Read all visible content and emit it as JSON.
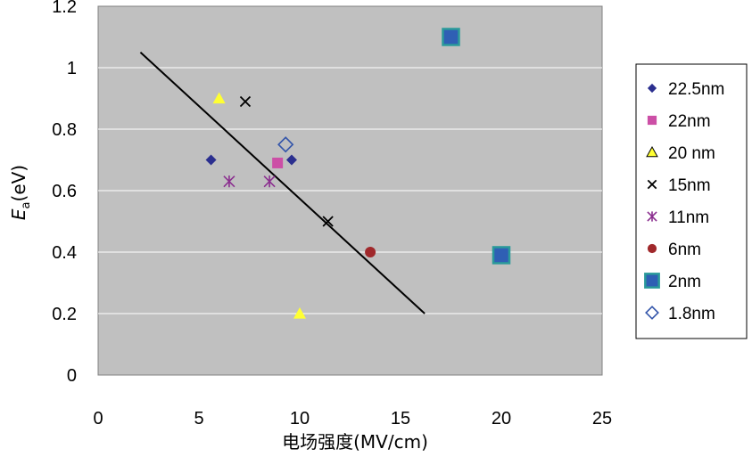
{
  "chart_data": {
    "type": "scatter",
    "xlabel": "电场强度(MV/cm)",
    "ylabel_main": "E",
    "ylabel_sub": "a",
    "ylabel_unit": "(eV)",
    "xlim": [
      0,
      25
    ],
    "ylim": [
      0,
      1.2
    ],
    "x_ticks": [
      "0",
      "5",
      "10",
      "15",
      "20",
      "25"
    ],
    "y_ticks": [
      "0",
      "0.2",
      "0.4",
      "0.6",
      "0.8",
      "1",
      "1.2"
    ],
    "grid": "horizontal",
    "legend_position": "right",
    "plot_background": "#c0c0c0",
    "series": [
      {
        "name": "22.5nm",
        "marker": "diamond",
        "color": "#2b2f8f",
        "points": [
          [
            5.6,
            0.7
          ],
          [
            9.6,
            0.7
          ]
        ]
      },
      {
        "name": "22nm",
        "marker": "square",
        "color": "#cc4fa6",
        "points": [
          [
            8.9,
            0.69
          ]
        ]
      },
      {
        "name": "20 nm",
        "marker": "triangle",
        "color": "#ffff33",
        "points": [
          [
            6.0,
            0.9
          ],
          [
            10.0,
            0.2
          ]
        ]
      },
      {
        "name": "15nm",
        "marker": "x",
        "color": "#000000",
        "points": [
          [
            7.3,
            0.89
          ],
          [
            11.4,
            0.5
          ]
        ]
      },
      {
        "name": "11nm",
        "marker": "asterisk",
        "color": "#8b2f8f",
        "points": [
          [
            6.5,
            0.63
          ],
          [
            8.5,
            0.63
          ]
        ]
      },
      {
        "name": "6nm",
        "marker": "circle",
        "color": "#a0282b",
        "points": [
          [
            13.5,
            0.4
          ]
        ]
      },
      {
        "name": "2nm",
        "marker": "bigsquare",
        "color": "#2f5fb4",
        "points": [
          [
            17.5,
            1.1
          ],
          [
            20.0,
            0.39
          ]
        ]
      },
      {
        "name": "1.8nm",
        "marker": "diamond-open",
        "color": "#3355aa",
        "points": [
          [
            9.3,
            0.75
          ]
        ]
      }
    ],
    "trendline": {
      "color": "#000000",
      "points": [
        [
          2.1,
          1.05
        ],
        [
          16.2,
          0.2
        ]
      ]
    }
  }
}
